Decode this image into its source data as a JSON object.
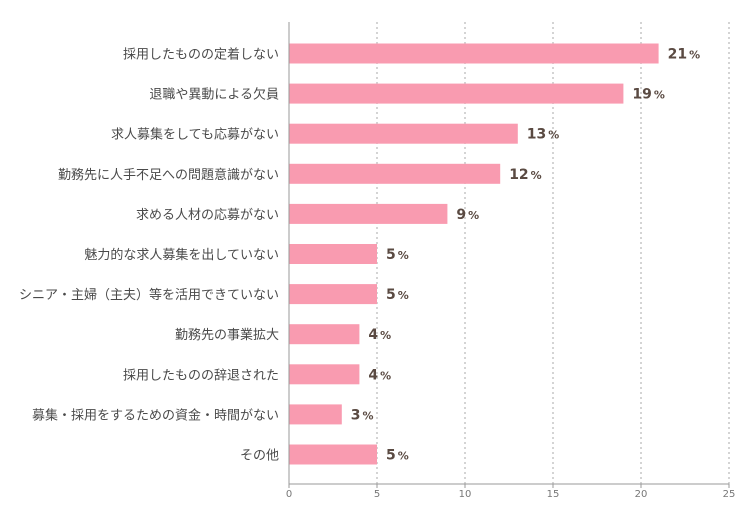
{
  "colors": {
    "bar": "#f99bb0",
    "axis": "#999999",
    "grid": "#aaaaaa",
    "value_text": "#5a4a42"
  },
  "chart_data": {
    "type": "bar",
    "orientation": "horizontal",
    "categories": [
      "採用したものの定着しない",
      "退職や異動による欠員",
      "求人募集をしても応募がない",
      "勤務先に人手不足への問題意識がない",
      "求める人材の応募がない",
      "魅力的な求人募集を出していない",
      "シニア・主婦（主夫）等を活用できていない",
      "勤務先の事業拡大",
      "採用したものの辞退された",
      "募集・採用をするための資金・時間がない",
      "その他"
    ],
    "values": [
      21,
      19,
      13,
      12,
      9,
      5,
      5,
      4,
      4,
      3,
      5
    ],
    "value_suffix": "%",
    "xlim": [
      0,
      25
    ],
    "xticks": [
      0,
      5,
      10,
      15,
      20,
      25
    ],
    "grid": "vertical-dotted",
    "legend": "none",
    "title": "",
    "xlabel": "",
    "ylabel": ""
  }
}
